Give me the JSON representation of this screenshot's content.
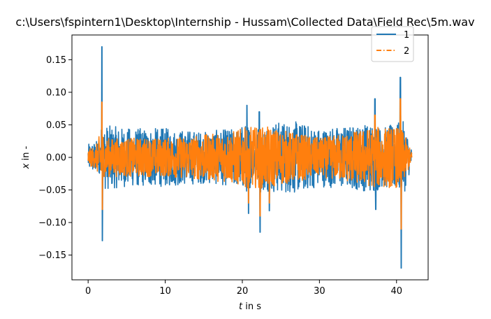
{
  "chart_data": {
    "type": "line",
    "title": "c:\\Users\\fspintern1\\Desktop\\Internship - Hussam\\Collected Data\\Field Rec\\5m.wav",
    "xlabel_var": "t",
    "xlabel_unit": " in s",
    "ylabel_var": "x",
    "ylabel_unit": " in -",
    "xlim": [
      -2.1,
      44.1
    ],
    "ylim": [
      -0.188,
      0.188
    ],
    "x_ticks": [
      0,
      10,
      20,
      30,
      40
    ],
    "y_ticks": [
      -0.15,
      -0.1,
      -0.05,
      0.0,
      0.05,
      0.1,
      0.15
    ],
    "x_tick_labels": [
      "0",
      "10",
      "20",
      "30",
      "40"
    ],
    "y_tick_labels": [
      "−0.15",
      "−0.10",
      "−0.05",
      "0.00",
      "0.05",
      "0.10",
      "0.15"
    ],
    "grid": false,
    "legend_position": "top-right",
    "series": [
      {
        "name": "1",
        "color": "#1f77b4",
        "style": "solid",
        "x_range": [
          0,
          42.0
        ],
        "envelope": [
          [
            0.0,
            0.02
          ],
          [
            1.0,
            0.025
          ],
          [
            1.5,
            0.03
          ],
          [
            1.8,
            0.17
          ],
          [
            1.85,
            -0.128
          ],
          [
            2.0,
            0.05
          ],
          [
            5.0,
            0.045
          ],
          [
            10.0,
            0.045
          ],
          [
            15.0,
            0.04
          ],
          [
            19.5,
            0.045
          ],
          [
            20.6,
            0.08
          ],
          [
            20.8,
            -0.086
          ],
          [
            21.5,
            0.025
          ],
          [
            22.2,
            0.07
          ],
          [
            22.3,
            -0.115
          ],
          [
            23.0,
            0.05
          ],
          [
            23.5,
            -0.082
          ],
          [
            27.0,
            0.055
          ],
          [
            30.0,
            0.045
          ],
          [
            35.0,
            0.05
          ],
          [
            37.2,
            0.09
          ],
          [
            37.3,
            -0.08
          ],
          [
            38.0,
            0.045
          ],
          [
            40.5,
            0.123
          ],
          [
            40.6,
            -0.17
          ],
          [
            41.0,
            0.06
          ],
          [
            42.0,
            0.01
          ]
        ],
        "peak_min": -0.17,
        "peak_max": 0.17
      },
      {
        "name": "2",
        "color": "#ff7f0e",
        "style": "dashdot",
        "x_range": [
          0,
          42.0
        ],
        "envelope": [
          [
            0.0,
            0.015
          ],
          [
            1.0,
            0.02
          ],
          [
            1.8,
            0.085
          ],
          [
            1.85,
            -0.08
          ],
          [
            2.0,
            0.035
          ],
          [
            10.0,
            0.035
          ],
          [
            18.0,
            0.045
          ],
          [
            20.6,
            0.055
          ],
          [
            20.8,
            -0.07
          ],
          [
            22.2,
            0.06
          ],
          [
            22.3,
            -0.09
          ],
          [
            23.5,
            -0.07
          ],
          [
            30.0,
            0.035
          ],
          [
            37.2,
            0.065
          ],
          [
            40.5,
            0.09
          ],
          [
            40.6,
            -0.11
          ],
          [
            42.0,
            0.008
          ]
        ],
        "peak_min": -0.11,
        "peak_max": 0.09
      }
    ]
  }
}
